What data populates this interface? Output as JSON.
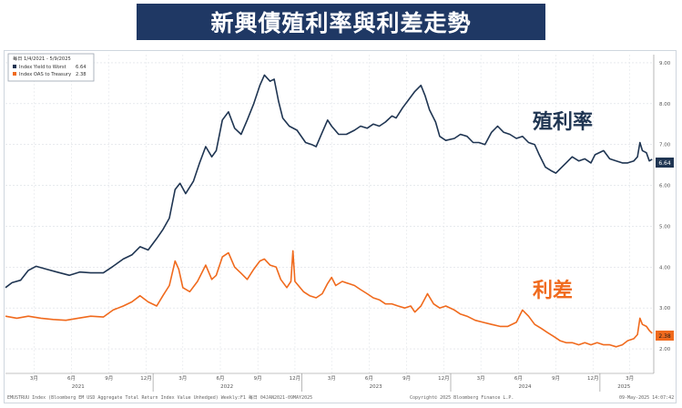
{
  "header": {
    "title": "新興債殖利率與利差走勢"
  },
  "legend": {
    "period": "每日 1/4/2021 - 5/9/2025",
    "entries": [
      {
        "label": "Index Yield to Worst",
        "value": "6.64",
        "color": "#1f3552"
      },
      {
        "label": "Index OAS to Treasury",
        "value": "2.38",
        "color": "#f06a1d"
      }
    ]
  },
  "annotations": [
    {
      "text": "殖利率",
      "color": "#1f3552"
    },
    {
      "text": "利差",
      "color": "#f06a1d"
    }
  ],
  "footer": {
    "source": "EMUSTRUU Index (Bloomberg EM USD Aggregate Total Return Index Value Unhedged) Weekly:F1  每日 04JAN2021-09MAY2025",
    "copyright": "Copyright© 2025 Bloomberg Finance L.P.",
    "timestamp": "09-May-2025 14:07:42"
  },
  "chart_data": {
    "type": "line",
    "title": "新興債殖利率與利差走勢",
    "y_ticks": [
      "9.00",
      "8.00",
      "7.00",
      "6.00",
      "5.00",
      "4.00",
      "3.00",
      "2.00"
    ],
    "ylim": [
      1.4,
      9.2
    ],
    "month_ticks": [
      "3月",
      "6月",
      "9月",
      "12月",
      "3月",
      "6月",
      "9月",
      "12月",
      "3月",
      "6月",
      "9月",
      "12月",
      "3月",
      "6月",
      "9月",
      "12月",
      "3月"
    ],
    "year_labels": [
      "2021",
      "2022",
      "2023",
      "2024",
      "2025"
    ],
    "grid": true,
    "legend_position": "top-left",
    "series": [
      {
        "name": "Index Yield to Worst",
        "color": "#1f3552",
        "last_value": "6.64",
        "points": [
          [
            "2021-01-04",
            3.5
          ],
          [
            "2021-01-20",
            3.62
          ],
          [
            "2021-02-10",
            3.68
          ],
          [
            "2021-03-01",
            3.92
          ],
          [
            "2021-03-20",
            4.02
          ],
          [
            "2021-04-15",
            3.95
          ],
          [
            "2021-05-10",
            3.88
          ],
          [
            "2021-06-10",
            3.8
          ],
          [
            "2021-07-05",
            3.88
          ],
          [
            "2021-08-01",
            3.86
          ],
          [
            "2021-09-01",
            3.86
          ],
          [
            "2021-09-25",
            4.02
          ],
          [
            "2021-10-20",
            4.2
          ],
          [
            "2021-11-10",
            4.3
          ],
          [
            "2021-11-30",
            4.5
          ],
          [
            "2021-12-20",
            4.42
          ],
          [
            "2022-01-10",
            4.7
          ],
          [
            "2022-01-25",
            4.92
          ],
          [
            "2022-02-10",
            5.2
          ],
          [
            "2022-02-24",
            5.9
          ],
          [
            "2022-03-08",
            6.05
          ],
          [
            "2022-03-22",
            5.8
          ],
          [
            "2022-04-10",
            6.1
          ],
          [
            "2022-04-25",
            6.55
          ],
          [
            "2022-05-10",
            6.95
          ],
          [
            "2022-05-25",
            6.7
          ],
          [
            "2022-06-05",
            6.85
          ],
          [
            "2022-06-20",
            7.6
          ],
          [
            "2022-07-05",
            7.8
          ],
          [
            "2022-07-20",
            7.4
          ],
          [
            "2022-08-05",
            7.25
          ],
          [
            "2022-08-20",
            7.6
          ],
          [
            "2022-09-05",
            8.0
          ],
          [
            "2022-09-20",
            8.45
          ],
          [
            "2022-10-01",
            8.7
          ],
          [
            "2022-10-15",
            8.55
          ],
          [
            "2022-10-25",
            8.6
          ],
          [
            "2022-11-05",
            8.05
          ],
          [
            "2022-11-15",
            7.65
          ],
          [
            "2022-12-01",
            7.45
          ],
          [
            "2022-12-20",
            7.35
          ],
          [
            "2023-01-10",
            7.05
          ],
          [
            "2023-01-25",
            7.0
          ],
          [
            "2023-02-05",
            6.95
          ],
          [
            "2023-02-20",
            7.3
          ],
          [
            "2023-03-05",
            7.6
          ],
          [
            "2023-03-15",
            7.45
          ],
          [
            "2023-04-01",
            7.25
          ],
          [
            "2023-04-20",
            7.25
          ],
          [
            "2023-05-10",
            7.35
          ],
          [
            "2023-05-25",
            7.45
          ],
          [
            "2023-06-10",
            7.4
          ],
          [
            "2023-06-25",
            7.5
          ],
          [
            "2023-07-10",
            7.45
          ],
          [
            "2023-07-25",
            7.55
          ],
          [
            "2023-08-10",
            7.7
          ],
          [
            "2023-08-20",
            7.65
          ],
          [
            "2023-09-05",
            7.9
          ],
          [
            "2023-09-20",
            8.1
          ],
          [
            "2023-10-05",
            8.3
          ],
          [
            "2023-10-20",
            8.45
          ],
          [
            "2023-10-30",
            8.2
          ],
          [
            "2023-11-10",
            7.85
          ],
          [
            "2023-11-25",
            7.55
          ],
          [
            "2023-12-05",
            7.2
          ],
          [
            "2023-12-20",
            7.1
          ],
          [
            "2024-01-10",
            7.15
          ],
          [
            "2024-01-25",
            7.25
          ],
          [
            "2024-02-10",
            7.2
          ],
          [
            "2024-02-25",
            7.05
          ],
          [
            "2024-03-10",
            7.05
          ],
          [
            "2024-03-25",
            7.0
          ],
          [
            "2024-04-10",
            7.3
          ],
          [
            "2024-04-25",
            7.45
          ],
          [
            "2024-05-10",
            7.3
          ],
          [
            "2024-05-25",
            7.25
          ],
          [
            "2024-06-10",
            7.15
          ],
          [
            "2024-06-25",
            7.2
          ],
          [
            "2024-07-10",
            7.05
          ],
          [
            "2024-07-25",
            7.0
          ],
          [
            "2024-08-05",
            6.75
          ],
          [
            "2024-08-20",
            6.45
          ],
          [
            "2024-09-05",
            6.35
          ],
          [
            "2024-09-15",
            6.3
          ],
          [
            "2024-09-25",
            6.4
          ],
          [
            "2024-10-10",
            6.55
          ],
          [
            "2024-10-25",
            6.7
          ],
          [
            "2024-11-10",
            6.6
          ],
          [
            "2024-11-25",
            6.65
          ],
          [
            "2024-12-10",
            6.55
          ],
          [
            "2024-12-20",
            6.75
          ],
          [
            "2025-01-10",
            6.85
          ],
          [
            "2025-01-25",
            6.65
          ],
          [
            "2025-02-10",
            6.6
          ],
          [
            "2025-02-25",
            6.55
          ],
          [
            "2025-03-10",
            6.55
          ],
          [
            "2025-03-25",
            6.6
          ],
          [
            "2025-04-03",
            6.7
          ],
          [
            "2025-04-09",
            7.05
          ],
          [
            "2025-04-15",
            6.85
          ],
          [
            "2025-04-25",
            6.8
          ],
          [
            "2025-05-02",
            6.6
          ],
          [
            "2025-05-09",
            6.64
          ]
        ]
      },
      {
        "name": "Index OAS to Treasury",
        "color": "#f06a1d",
        "last_value": "2.38",
        "points": [
          [
            "2021-01-04",
            2.8
          ],
          [
            "2021-02-01",
            2.75
          ],
          [
            "2021-03-01",
            2.8
          ],
          [
            "2021-04-01",
            2.75
          ],
          [
            "2021-05-01",
            2.72
          ],
          [
            "2021-06-01",
            2.7
          ],
          [
            "2021-07-01",
            2.75
          ],
          [
            "2021-08-01",
            2.8
          ],
          [
            "2021-09-01",
            2.78
          ],
          [
            "2021-09-25",
            2.95
          ],
          [
            "2021-10-20",
            3.05
          ],
          [
            "2021-11-10",
            3.15
          ],
          [
            "2021-11-30",
            3.3
          ],
          [
            "2021-12-20",
            3.15
          ],
          [
            "2022-01-10",
            3.05
          ],
          [
            "2022-01-25",
            3.3
          ],
          [
            "2022-02-10",
            3.55
          ],
          [
            "2022-02-24",
            4.15
          ],
          [
            "2022-03-05",
            3.95
          ],
          [
            "2022-03-15",
            3.5
          ],
          [
            "2022-04-01",
            3.4
          ],
          [
            "2022-04-20",
            3.65
          ],
          [
            "2022-05-10",
            4.05
          ],
          [
            "2022-05-25",
            3.7
          ],
          [
            "2022-06-05",
            3.8
          ],
          [
            "2022-06-20",
            4.25
          ],
          [
            "2022-07-05",
            4.35
          ],
          [
            "2022-07-20",
            4.0
          ],
          [
            "2022-08-05",
            3.85
          ],
          [
            "2022-08-20",
            3.7
          ],
          [
            "2022-09-05",
            3.95
          ],
          [
            "2022-09-20",
            4.15
          ],
          [
            "2022-10-01",
            4.2
          ],
          [
            "2022-10-15",
            4.05
          ],
          [
            "2022-10-30",
            4.0
          ],
          [
            "2022-11-10",
            3.7
          ],
          [
            "2022-11-25",
            3.5
          ],
          [
            "2022-12-05",
            3.65
          ],
          [
            "2022-12-10",
            4.4
          ],
          [
            "2022-12-15",
            3.65
          ],
          [
            "2023-01-05",
            3.4
          ],
          [
            "2023-01-20",
            3.3
          ],
          [
            "2023-02-05",
            3.25
          ],
          [
            "2023-02-20",
            3.35
          ],
          [
            "2023-03-05",
            3.6
          ],
          [
            "2023-03-15",
            3.75
          ],
          [
            "2023-03-25",
            3.55
          ],
          [
            "2023-04-10",
            3.65
          ],
          [
            "2023-04-25",
            3.6
          ],
          [
            "2023-05-10",
            3.55
          ],
          [
            "2023-05-25",
            3.45
          ],
          [
            "2023-06-10",
            3.35
          ],
          [
            "2023-06-25",
            3.25
          ],
          [
            "2023-07-10",
            3.2
          ],
          [
            "2023-07-25",
            3.1
          ],
          [
            "2023-08-10",
            3.1
          ],
          [
            "2023-08-25",
            3.05
          ],
          [
            "2023-09-10",
            3.0
          ],
          [
            "2023-09-25",
            3.05
          ],
          [
            "2023-10-05",
            2.9
          ],
          [
            "2023-10-20",
            3.05
          ],
          [
            "2023-11-05",
            3.35
          ],
          [
            "2023-11-20",
            3.1
          ],
          [
            "2023-12-05",
            3.0
          ],
          [
            "2023-12-20",
            3.05
          ],
          [
            "2024-01-10",
            2.95
          ],
          [
            "2024-01-25",
            2.85
          ],
          [
            "2024-02-10",
            2.8
          ],
          [
            "2024-03-01",
            2.7
          ],
          [
            "2024-03-20",
            2.65
          ],
          [
            "2024-04-10",
            2.6
          ],
          [
            "2024-05-01",
            2.55
          ],
          [
            "2024-05-20",
            2.55
          ],
          [
            "2024-06-10",
            2.65
          ],
          [
            "2024-06-25",
            2.95
          ],
          [
            "2024-07-10",
            2.8
          ],
          [
            "2024-07-25",
            2.6
          ],
          [
            "2024-08-10",
            2.5
          ],
          [
            "2024-08-25",
            2.4
          ],
          [
            "2024-09-10",
            2.3
          ],
          [
            "2024-09-25",
            2.2
          ],
          [
            "2024-10-10",
            2.15
          ],
          [
            "2024-10-25",
            2.15
          ],
          [
            "2024-11-10",
            2.1
          ],
          [
            "2024-11-25",
            2.15
          ],
          [
            "2024-12-10",
            2.1
          ],
          [
            "2024-12-25",
            2.15
          ],
          [
            "2025-01-10",
            2.1
          ],
          [
            "2025-01-25",
            2.1
          ],
          [
            "2025-02-10",
            2.05
          ],
          [
            "2025-02-25",
            2.1
          ],
          [
            "2025-03-10",
            2.2
          ],
          [
            "2025-03-25",
            2.25
          ],
          [
            "2025-04-03",
            2.35
          ],
          [
            "2025-04-09",
            2.75
          ],
          [
            "2025-04-15",
            2.6
          ],
          [
            "2025-04-25",
            2.55
          ],
          [
            "2025-05-02",
            2.45
          ],
          [
            "2025-05-09",
            2.38
          ]
        ]
      }
    ]
  }
}
